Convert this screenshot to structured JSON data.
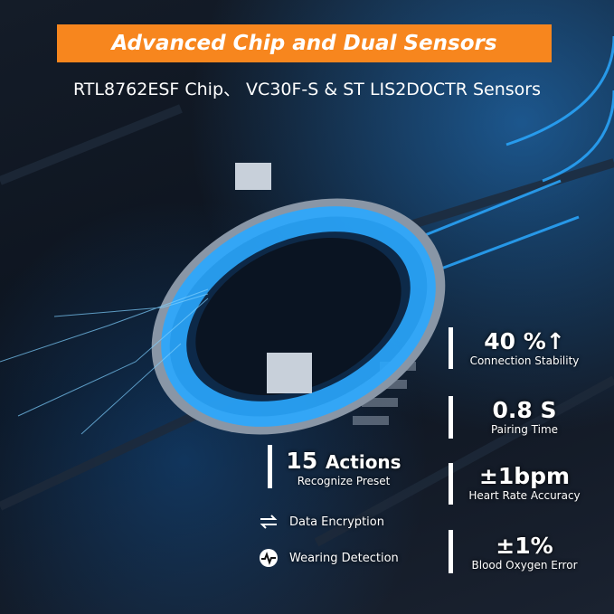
{
  "header": {
    "title": "Advanced Chip and Dual Sensors",
    "subtitle": "RTL8762ESF Chip、 VC30F-S & ST LIS2DOCTR Sensors"
  },
  "colors": {
    "banner": "#f7861e",
    "accent": "#2aa8ff"
  },
  "left_stat": {
    "value": "15",
    "unit": "Actions",
    "label": "Recognize Preset"
  },
  "features": [
    {
      "icon": "arrows-exchange-icon",
      "label": "Data Encryption"
    },
    {
      "icon": "heartbeat-circle-icon",
      "label": "Wearing Detection"
    }
  ],
  "stats": [
    {
      "value": "40 %↑",
      "label": "Connection Stability"
    },
    {
      "value": "0.8 S",
      "label": "Pairing Time"
    },
    {
      "value": "±1bpm",
      "label": "Heart Rate Accuracy"
    },
    {
      "value": "±1%",
      "label": "Blood Oxygen Error"
    }
  ]
}
